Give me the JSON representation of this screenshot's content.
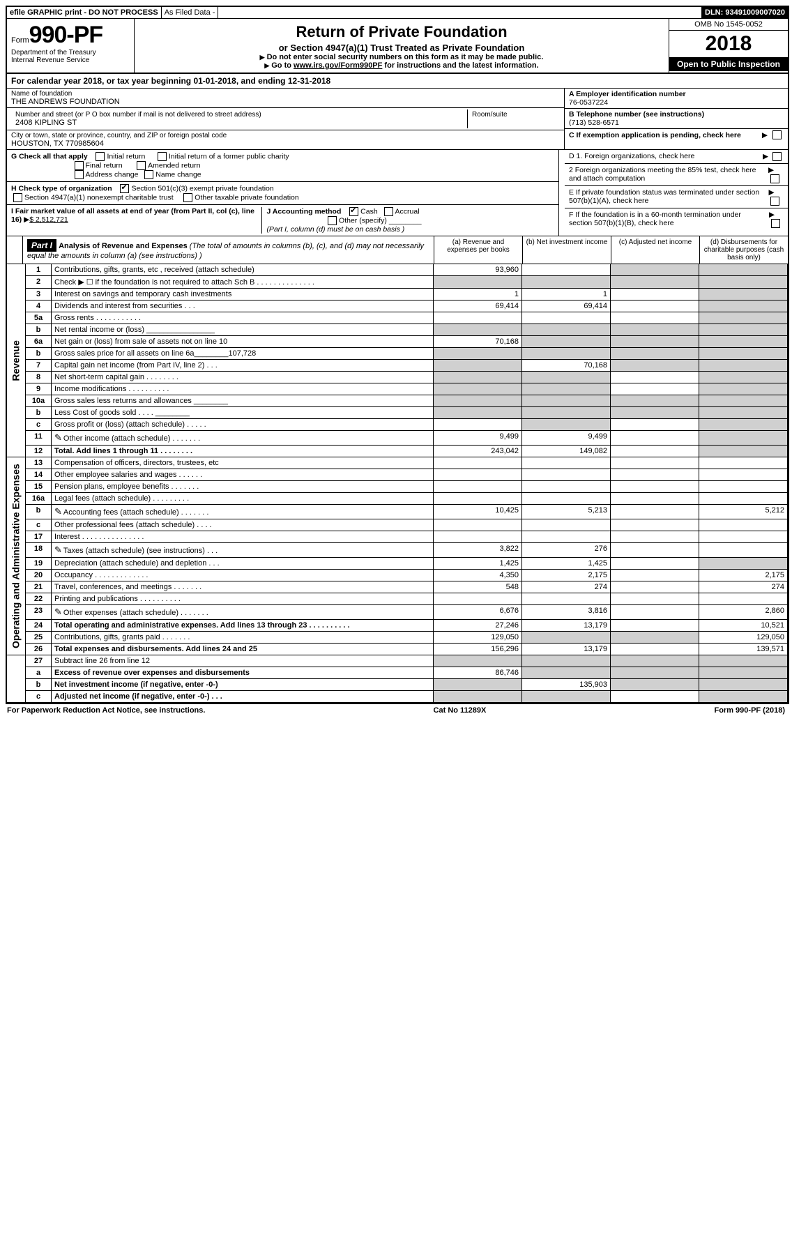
{
  "top": {
    "efile": "efile GRAPHIC print - DO NOT PROCESS",
    "asfiled": "As Filed Data -",
    "dln": "DLN: 93491009007020"
  },
  "header": {
    "form_prefix": "Form",
    "form_number": "990-PF",
    "dept": "Department of the Treasury",
    "irs": "Internal Revenue Service",
    "title": "Return of Private Foundation",
    "subtitle": "or Section 4947(a)(1) Trust Treated as Private Foundation",
    "warn1": "Do not enter social security numbers on this form as it may be made public.",
    "warn2_pre": "Go to ",
    "warn2_link": "www.irs.gov/Form990PF",
    "warn2_post": " for instructions and the latest information.",
    "omb": "OMB No 1545-0052",
    "year": "2018",
    "inspect": "Open to Public Inspection"
  },
  "cal": {
    "line_pre": "For calendar year 2018, or tax year beginning ",
    "begin": "01-01-2018",
    "mid": ", and ending ",
    "end": "12-31-2018"
  },
  "ent": {
    "name_lbl": "Name of foundation",
    "name": "THE ANDREWS FOUNDATION",
    "addr_lbl": "Number and street (or P O  box number if mail is not delivered to street address)",
    "addr": "2408 KIPLING ST",
    "room_lbl": "Room/suite",
    "city_lbl": "City or town, state or province, country, and ZIP or foreign postal code",
    "city": "HOUSTON, TX  770985604",
    "a_lbl": "A Employer identification number",
    "a_val": "76-0537224",
    "b_lbl": "B Telephone number (see instructions)",
    "b_val": "(713) 528-6571",
    "c_lbl": "C If exemption application is pending, check here"
  },
  "g": {
    "lbl": "G Check all that apply",
    "o1": "Initial return",
    "o2": "Initial return of a former public charity",
    "o3": "Final return",
    "o4": "Amended return",
    "o5": "Address change",
    "o6": "Name change"
  },
  "h": {
    "lbl": "H Check type of organization",
    "o1": "Section 501(c)(3) exempt private foundation",
    "o2": "Section 4947(a)(1) nonexempt charitable trust",
    "o3": "Other taxable private foundation"
  },
  "i": {
    "lbl": "I Fair market value of all assets at end of year (from Part II, col  (c), line 16)",
    "val": "$  2,512,721"
  },
  "j": {
    "lbl": "J Accounting method",
    "o1": "Cash",
    "o2": "Accrual",
    "o3": "Other (specify)",
    "note": "(Part I, column (d) must be on cash basis )"
  },
  "d": {
    "d1": "D 1. Foreign organizations, check here",
    "d2": "2  Foreign organizations meeting the 85% test, check here and attach computation",
    "e": "E  If private foundation status was terminated under section 507(b)(1)(A), check here",
    "f": "F  If the foundation is in a 60-month termination under section 507(b)(1)(B), check here"
  },
  "part1": {
    "tag": "Part I",
    "title": "Analysis of Revenue and Expenses",
    "note": "(The total of amounts in columns (b), (c), and (d) may not necessarily equal the amounts in column (a) (see instructions) )",
    "col_a": "(a)  Revenue and expenses per books",
    "col_b": "(b)  Net investment income",
    "col_c": "(c)  Adjusted net income",
    "col_d": "(d)  Disbursements for charitable purposes (cash basis only)",
    "rev_label": "Revenue",
    "exp_label": "Operating and Administrative Expenses"
  },
  "rows": [
    {
      "n": "1",
      "d": "Contributions, gifts, grants, etc , received (attach schedule)",
      "a": "93,960",
      "b": "",
      "c": "",
      "dd": "",
      "sec": "rev",
      "shade_c": true,
      "shade_d": true
    },
    {
      "n": "2",
      "d": "Check ▶ ☐ if the foundation is not required to attach Sch  B    .   .   .   .   .   .   .   .   .   .   .   .   .   .",
      "a": "",
      "b": "",
      "c": "",
      "dd": "",
      "sec": "rev",
      "shade_a": true,
      "shade_b": true,
      "shade_c": true,
      "shade_d": true
    },
    {
      "n": "3",
      "d": "Interest on savings and temporary cash investments",
      "a": "1",
      "b": "1",
      "c": "",
      "dd": "",
      "sec": "rev",
      "shade_d": true
    },
    {
      "n": "4",
      "d": "Dividends and interest from securities    .   .   .",
      "a": "69,414",
      "b": "69,414",
      "c": "",
      "dd": "",
      "sec": "rev",
      "shade_d": true
    },
    {
      "n": "5a",
      "d": "Gross rents    .   .   .   .   .   .   .   .   .   .   .",
      "a": "",
      "b": "",
      "c": "",
      "dd": "",
      "sec": "rev",
      "shade_d": true
    },
    {
      "n": "b",
      "d": "Net rental income or (loss)  ________________",
      "a": "",
      "b": "",
      "c": "",
      "dd": "",
      "sec": "rev",
      "shade_a": true,
      "shade_b": true,
      "shade_c": true,
      "shade_d": true
    },
    {
      "n": "6a",
      "d": "Net gain or (loss) from sale of assets not on line 10",
      "a": "70,168",
      "b": "",
      "c": "",
      "dd": "",
      "sec": "rev",
      "shade_b": true,
      "shade_c": true,
      "shade_d": true
    },
    {
      "n": "b",
      "d": "Gross sales price for all assets on line 6a________107,728",
      "a": "",
      "b": "",
      "c": "",
      "dd": "",
      "sec": "rev",
      "shade_a": true,
      "shade_b": true,
      "shade_c": true,
      "shade_d": true
    },
    {
      "n": "7",
      "d": "Capital gain net income (from Part IV, line 2)   .   .   .",
      "a": "",
      "b": "70,168",
      "c": "",
      "dd": "",
      "sec": "rev",
      "shade_a": true,
      "shade_c": true,
      "shade_d": true
    },
    {
      "n": "8",
      "d": "Net short-term capital gain   .   .   .   .   .   .   .   .",
      "a": "",
      "b": "",
      "c": "",
      "dd": "",
      "sec": "rev",
      "shade_a": true,
      "shade_b": true,
      "shade_d": true
    },
    {
      "n": "9",
      "d": "Income modifications  .   .   .   .   .   .   .   .   .   .",
      "a": "",
      "b": "",
      "c": "",
      "dd": "",
      "sec": "rev",
      "shade_a": true,
      "shade_b": true,
      "shade_d": true
    },
    {
      "n": "10a",
      "d": "Gross sales less returns and allowances ________",
      "a": "",
      "b": "",
      "c": "",
      "dd": "",
      "sec": "rev",
      "shade_a": true,
      "shade_b": true,
      "shade_c": true,
      "shade_d": true
    },
    {
      "n": "b",
      "d": "Less  Cost of goods sold   .   .   .   .  ________",
      "a": "",
      "b": "",
      "c": "",
      "dd": "",
      "sec": "rev",
      "shade_a": true,
      "shade_b": true,
      "shade_c": true,
      "shade_d": true
    },
    {
      "n": "c",
      "d": "Gross profit or (loss) (attach schedule)   .   .   .   .   .",
      "a": "",
      "b": "",
      "c": "",
      "dd": "",
      "sec": "rev",
      "shade_b": true,
      "shade_d": true
    },
    {
      "n": "11",
      "d": "Other income (attach schedule)   .   .   .   .   .   .   .",
      "a": "9,499",
      "b": "9,499",
      "c": "",
      "dd": "",
      "sec": "rev",
      "icon": true,
      "shade_d": true
    },
    {
      "n": "12",
      "d": "Total. Add lines 1 through 11   .   .   .   .   .   .   .   .",
      "a": "243,042",
      "b": "149,082",
      "c": "",
      "dd": "",
      "sec": "rev",
      "bold": true,
      "shade_d": true
    },
    {
      "n": "13",
      "d": "Compensation of officers, directors, trustees, etc",
      "a": "",
      "b": "",
      "c": "",
      "dd": "",
      "sec": "exp"
    },
    {
      "n": "14",
      "d": "Other employee salaries and wages   .   .   .   .   .   .",
      "a": "",
      "b": "",
      "c": "",
      "dd": "",
      "sec": "exp"
    },
    {
      "n": "15",
      "d": "Pension plans, employee benefits  .   .   .   .   .   .   .",
      "a": "",
      "b": "",
      "c": "",
      "dd": "",
      "sec": "exp"
    },
    {
      "n": "16a",
      "d": "Legal fees (attach schedule)  .   .   .   .   .   .   .   .   .",
      "a": "",
      "b": "",
      "c": "",
      "dd": "",
      "sec": "exp"
    },
    {
      "n": "b",
      "d": "Accounting fees (attach schedule)  .   .   .   .   .   .   .",
      "a": "10,425",
      "b": "5,213",
      "c": "",
      "dd": "5,212",
      "sec": "exp",
      "icon": true
    },
    {
      "n": "c",
      "d": "Other professional fees (attach schedule)   .   .   .   .",
      "a": "",
      "b": "",
      "c": "",
      "dd": "",
      "sec": "exp"
    },
    {
      "n": "17",
      "d": "Interest   .   .   .   .   .   .   .   .   .   .   .   .   .   .   .",
      "a": "",
      "b": "",
      "c": "",
      "dd": "",
      "sec": "exp"
    },
    {
      "n": "18",
      "d": "Taxes (attach schedule) (see instructions)    .   .   .",
      "a": "3,822",
      "b": "276",
      "c": "",
      "dd": "",
      "sec": "exp",
      "icon": true
    },
    {
      "n": "19",
      "d": "Depreciation (attach schedule) and depletion   .   .   .",
      "a": "1,425",
      "b": "1,425",
      "c": "",
      "dd": "",
      "sec": "exp",
      "shade_d": true
    },
    {
      "n": "20",
      "d": "Occupancy   .   .   .   .   .   .   .   .   .   .   .   .   .",
      "a": "4,350",
      "b": "2,175",
      "c": "",
      "dd": "2,175",
      "sec": "exp"
    },
    {
      "n": "21",
      "d": "Travel, conferences, and meetings  .   .   .   .   .   .   .",
      "a": "548",
      "b": "274",
      "c": "",
      "dd": "274",
      "sec": "exp"
    },
    {
      "n": "22",
      "d": "Printing and publications  .   .   .   .   .   .   .   .   .   .",
      "a": "",
      "b": "",
      "c": "",
      "dd": "",
      "sec": "exp"
    },
    {
      "n": "23",
      "d": "Other expenses (attach schedule)  .   .   .   .   .   .   .",
      "a": "6,676",
      "b": "3,816",
      "c": "",
      "dd": "2,860",
      "sec": "exp",
      "icon": true
    },
    {
      "n": "24",
      "d": "Total operating and administrative expenses. Add lines 13 through 23   .   .   .   .   .   .   .   .   .   .",
      "a": "27,246",
      "b": "13,179",
      "c": "",
      "dd": "10,521",
      "sec": "exp",
      "bold": true
    },
    {
      "n": "25",
      "d": "Contributions, gifts, grants paid   .   .   .   .   .   .   .",
      "a": "129,050",
      "b": "",
      "c": "",
      "dd": "129,050",
      "sec": "exp",
      "shade_b": true,
      "shade_c": true
    },
    {
      "n": "26",
      "d": "Total expenses and disbursements. Add lines 24 and 25",
      "a": "156,296",
      "b": "13,179",
      "c": "",
      "dd": "139,571",
      "sec": "exp",
      "bold": true
    },
    {
      "n": "27",
      "d": "Subtract line 26 from line 12",
      "a": "",
      "b": "",
      "c": "",
      "dd": "",
      "sec": "net",
      "shade_a": true,
      "shade_b": true,
      "shade_c": true,
      "shade_d": true
    },
    {
      "n": "a",
      "d": "Excess of revenue over expenses and disbursements",
      "a": "86,746",
      "b": "",
      "c": "",
      "dd": "",
      "sec": "net",
      "bold": true,
      "shade_b": true,
      "shade_c": true,
      "shade_d": true
    },
    {
      "n": "b",
      "d": "Net investment income (if negative, enter -0-)",
      "a": "",
      "b": "135,903",
      "c": "",
      "dd": "",
      "sec": "net",
      "bold": true,
      "shade_a": true,
      "shade_c": true,
      "shade_d": true
    },
    {
      "n": "c",
      "d": "Adjusted net income (if negative, enter -0-)   .   .   .",
      "a": "",
      "b": "",
      "c": "",
      "dd": "",
      "sec": "net",
      "bold": true,
      "shade_a": true,
      "shade_b": true,
      "shade_d": true
    }
  ],
  "footer": {
    "left": "For Paperwork Reduction Act Notice, see instructions.",
    "mid": "Cat  No  11289X",
    "right": "Form 990-PF (2018)"
  }
}
